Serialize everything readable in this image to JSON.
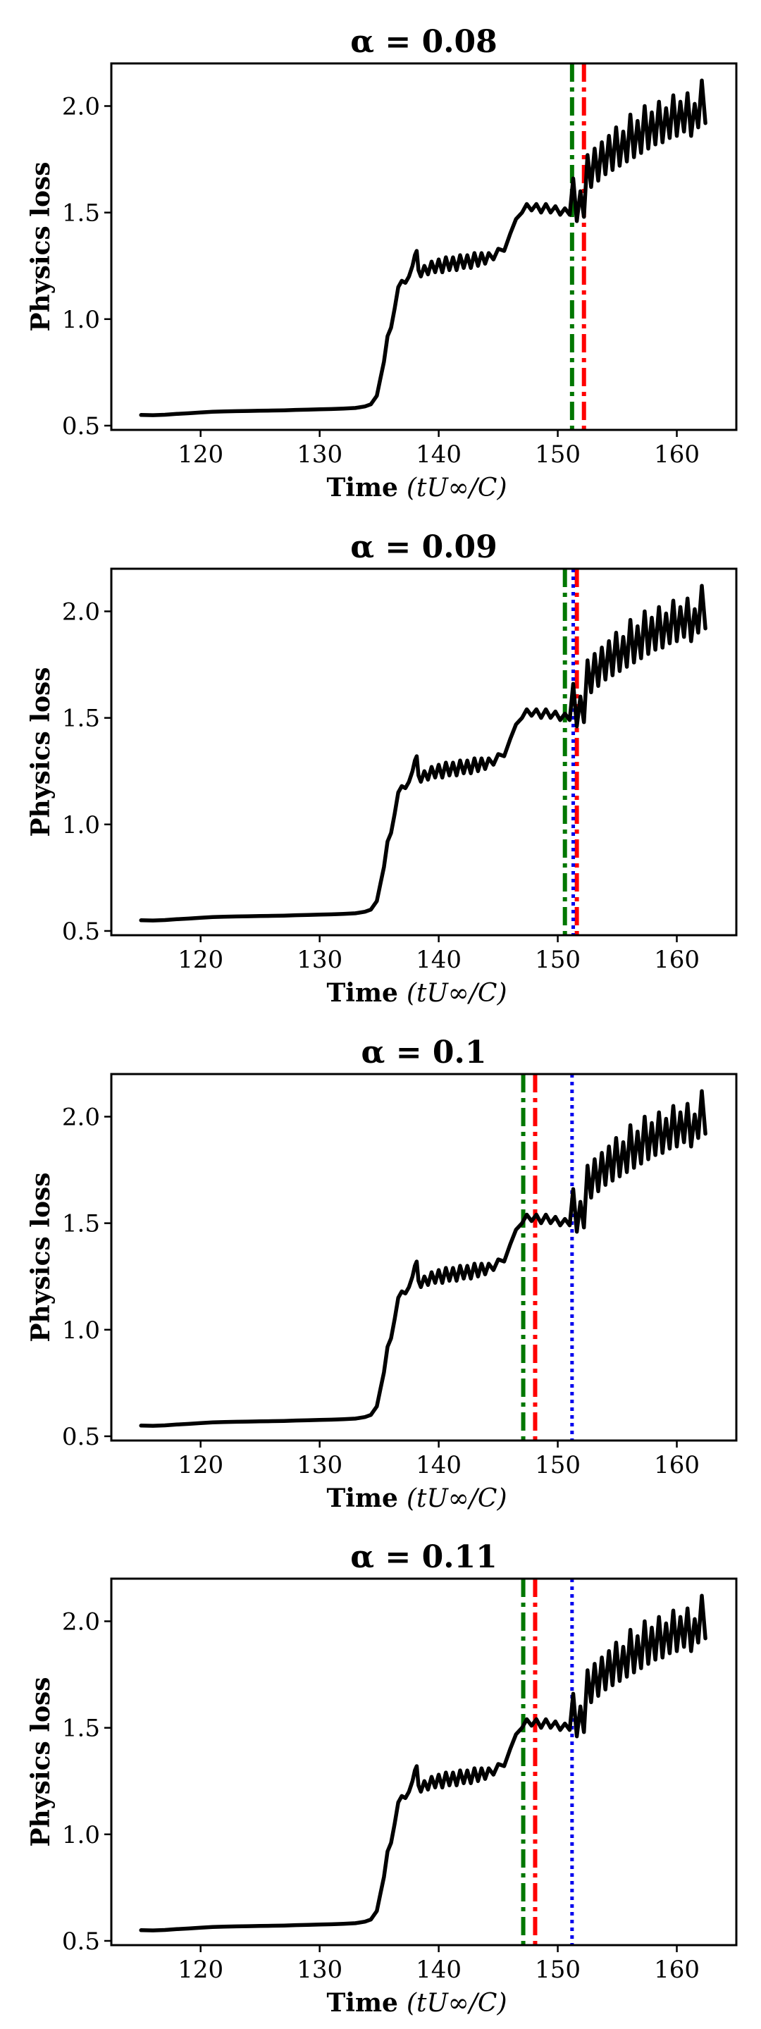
{
  "chart_data": [
    {
      "type": "line",
      "title": "α = 0.08",
      "xlabel": "Time",
      "xlabel_math": "(tU∞/C)",
      "ylabel": "Physics loss",
      "xlim": [
        112.5,
        165.0
      ],
      "ylim": [
        0.48,
        2.2
      ],
      "xticks": [
        "120",
        "130",
        "140",
        "150",
        "160"
      ],
      "yticks": [
        "0.5",
        "1.0",
        "1.5",
        "2.0"
      ],
      "grid": false,
      "markers": [
        {
          "name": "green-dashdot",
          "x": 151.2,
          "color": "#007700",
          "style": "dash-dot"
        },
        {
          "name": "red-dashdot",
          "x": 152.2,
          "color": "#ff0000",
          "style": "dash-dot"
        }
      ]
    },
    {
      "type": "line",
      "title": "α = 0.09",
      "xlabel": "Time",
      "xlabel_math": "(tU∞/C)",
      "ylabel": "Physics loss",
      "xlim": [
        112.5,
        165.0
      ],
      "ylim": [
        0.48,
        2.2
      ],
      "xticks": [
        "120",
        "130",
        "140",
        "150",
        "160"
      ],
      "yticks": [
        "0.5",
        "1.0",
        "1.5",
        "2.0"
      ],
      "grid": false,
      "markers": [
        {
          "name": "green-dashdot",
          "x": 150.6,
          "color": "#007700",
          "style": "dash-dot"
        },
        {
          "name": "red-dashdot",
          "x": 151.6,
          "color": "#ff0000",
          "style": "dash-dot"
        },
        {
          "name": "blue-dotted",
          "x": 151.3,
          "color": "#0000ee",
          "style": "dotted"
        }
      ]
    },
    {
      "type": "line",
      "title": "α = 0.1",
      "xlabel": "Time",
      "xlabel_math": "(tU∞/C)",
      "ylabel": "Physics loss",
      "xlim": [
        112.5,
        165.0
      ],
      "ylim": [
        0.48,
        2.2
      ],
      "xticks": [
        "120",
        "130",
        "140",
        "150",
        "160"
      ],
      "yticks": [
        "0.5",
        "1.0",
        "1.5",
        "2.0"
      ],
      "grid": false,
      "markers": [
        {
          "name": "green-dashdot",
          "x": 147.1,
          "color": "#007700",
          "style": "dash-dot"
        },
        {
          "name": "red-dashdot",
          "x": 148.1,
          "color": "#ff0000",
          "style": "dash-dot"
        },
        {
          "name": "blue-dotted",
          "x": 151.2,
          "color": "#0000ee",
          "style": "dotted"
        }
      ]
    },
    {
      "type": "line",
      "title": "α = 0.11",
      "xlabel": "Time",
      "xlabel_math": "(tU∞/C)",
      "ylabel": "Physics loss",
      "xlim": [
        112.5,
        165.0
      ],
      "ylim": [
        0.48,
        2.2
      ],
      "xticks": [
        "120",
        "130",
        "140",
        "150",
        "160"
      ],
      "yticks": [
        "0.5",
        "1.0",
        "1.5",
        "2.0"
      ],
      "grid": false,
      "markers": [
        {
          "name": "green-dashdot",
          "x": 147.1,
          "color": "#007700",
          "style": "dash-dot"
        },
        {
          "name": "red-dashdot",
          "x": 148.1,
          "color": "#ff0000",
          "style": "dash-dot"
        },
        {
          "name": "blue-dotted",
          "x": 151.2,
          "color": "#0000ee",
          "style": "dotted"
        }
      ]
    }
  ],
  "series": {
    "name": "physics-loss",
    "color": "#000000",
    "points": [
      [
        115,
        0.55
      ],
      [
        116,
        0.549
      ],
      [
        117,
        0.551
      ],
      [
        118,
        0.555
      ],
      [
        119,
        0.558
      ],
      [
        120,
        0.562
      ],
      [
        121,
        0.565
      ],
      [
        122,
        0.567
      ],
      [
        123,
        0.568
      ],
      [
        124,
        0.569
      ],
      [
        125,
        0.57
      ],
      [
        126,
        0.571
      ],
      [
        127,
        0.572
      ],
      [
        128,
        0.574
      ],
      [
        129,
        0.575
      ],
      [
        130,
        0.577
      ],
      [
        131,
        0.578
      ],
      [
        132,
        0.58
      ],
      [
        133,
        0.583
      ],
      [
        133.8,
        0.59
      ],
      [
        134.3,
        0.6
      ],
      [
        134.8,
        0.64
      ],
      [
        135.1,
        0.72
      ],
      [
        135.4,
        0.8
      ],
      [
        135.7,
        0.92
      ],
      [
        136.0,
        0.96
      ],
      [
        136.3,
        1.05
      ],
      [
        136.6,
        1.15
      ],
      [
        136.9,
        1.18
      ],
      [
        137.2,
        1.17
      ],
      [
        137.5,
        1.2
      ],
      [
        137.8,
        1.25
      ],
      [
        138.0,
        1.3
      ],
      [
        138.15,
        1.32
      ],
      [
        138.3,
        1.23
      ],
      [
        138.5,
        1.2
      ],
      [
        138.8,
        1.25
      ],
      [
        139.1,
        1.21
      ],
      [
        139.4,
        1.27
      ],
      [
        139.7,
        1.22
      ],
      [
        140.0,
        1.28
      ],
      [
        140.3,
        1.22
      ],
      [
        140.6,
        1.29
      ],
      [
        140.9,
        1.23
      ],
      [
        141.2,
        1.29
      ],
      [
        141.5,
        1.23
      ],
      [
        141.8,
        1.3
      ],
      [
        142.1,
        1.24
      ],
      [
        142.4,
        1.3
      ],
      [
        142.7,
        1.24
      ],
      [
        143.0,
        1.31
      ],
      [
        143.3,
        1.25
      ],
      [
        143.6,
        1.31
      ],
      [
        143.9,
        1.26
      ],
      [
        144.2,
        1.31
      ],
      [
        144.6,
        1.28
      ],
      [
        145.0,
        1.33
      ],
      [
        145.5,
        1.32
      ],
      [
        146.0,
        1.4
      ],
      [
        146.5,
        1.47
      ],
      [
        147.0,
        1.5
      ],
      [
        147.4,
        1.54
      ],
      [
        147.8,
        1.51
      ],
      [
        148.2,
        1.54
      ],
      [
        148.6,
        1.5
      ],
      [
        149.0,
        1.54
      ],
      [
        149.4,
        1.5
      ],
      [
        149.8,
        1.53
      ],
      [
        150.2,
        1.49
      ],
      [
        150.6,
        1.52
      ],
      [
        151.0,
        1.49
      ],
      [
        151.3,
        1.66
      ],
      [
        151.6,
        1.46
      ],
      [
        151.9,
        1.6
      ],
      [
        152.2,
        1.48
      ],
      [
        152.5,
        1.77
      ],
      [
        152.8,
        1.62
      ],
      [
        153.1,
        1.8
      ],
      [
        153.4,
        1.65
      ],
      [
        153.7,
        1.83
      ],
      [
        154.0,
        1.68
      ],
      [
        154.3,
        1.86
      ],
      [
        154.6,
        1.7
      ],
      [
        154.9,
        1.9
      ],
      [
        155.2,
        1.72
      ],
      [
        155.5,
        1.88
      ],
      [
        155.8,
        1.74
      ],
      [
        156.1,
        1.96
      ],
      [
        156.4,
        1.76
      ],
      [
        156.7,
        1.93
      ],
      [
        157.0,
        1.78
      ],
      [
        157.3,
        2.0
      ],
      [
        157.6,
        1.8
      ],
      [
        157.9,
        1.97
      ],
      [
        158.2,
        1.82
      ],
      [
        158.5,
        2.02
      ],
      [
        158.8,
        1.83
      ],
      [
        159.1,
        1.99
      ],
      [
        159.4,
        1.85
      ],
      [
        159.7,
        2.05
      ],
      [
        160.0,
        1.86
      ],
      [
        160.3,
        2.02
      ],
      [
        160.6,
        1.88
      ],
      [
        160.9,
        2.06
      ],
      [
        161.2,
        1.86
      ],
      [
        161.5,
        2.01
      ],
      [
        161.8,
        1.9
      ],
      [
        162.1,
        2.12
      ],
      [
        162.4,
        1.92
      ]
    ]
  }
}
